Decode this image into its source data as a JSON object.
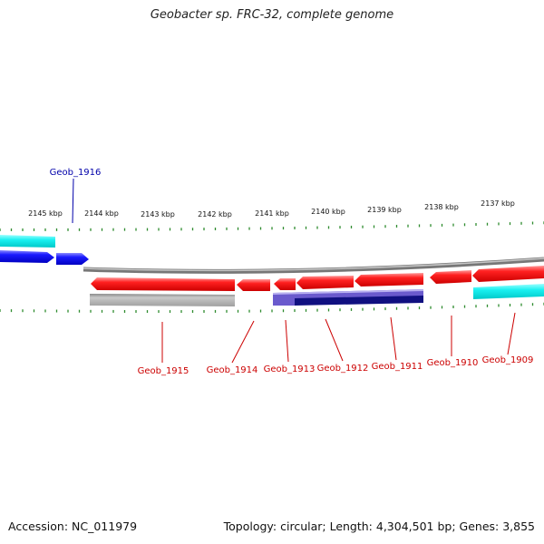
{
  "title": "Geobacter sp. FRC-32, complete genome",
  "footer": {
    "accession": "Accession: NC_011979",
    "summary": "Topology: circular; Length: 4,304,501 bp; Genes: 3,855"
  },
  "colors": {
    "tick": "#2e8b2e",
    "backbone": "#808080",
    "label_forward": "#0000aa",
    "label_reverse": "#cc0000",
    "red_gene": "#ee1111",
    "blue_gene": "#1515ee",
    "cyan_bar": "#22e6e6",
    "navy_bar": "#101080",
    "violet_bar": "#6a5acd",
    "gray_bar": "#b4b4b4"
  },
  "scale_labels": [
    "2145 kbp",
    "2144 kbp",
    "2143 kbp",
    "2142 kbp",
    "2141 kbp",
    "2140 kbp",
    "2139 kbp",
    "2138 kbp",
    "2137 kbp"
  ],
  "genes": [
    {
      "name": "Geob_1916",
      "strand": "forward",
      "track": "blue"
    },
    {
      "name": "Geob_1915",
      "strand": "reverse",
      "track": "red"
    },
    {
      "name": "Geob_1914",
      "strand": "reverse",
      "track": "red"
    },
    {
      "name": "Geob_1913",
      "strand": "reverse",
      "track": "red"
    },
    {
      "name": "Geob_1912",
      "strand": "reverse",
      "track": "red"
    },
    {
      "name": "Geob_1911",
      "strand": "reverse",
      "track": "red"
    },
    {
      "name": "Geob_1910",
      "strand": "reverse",
      "track": "red"
    },
    {
      "name": "Geob_1909",
      "strand": "reverse",
      "track": "red"
    }
  ]
}
